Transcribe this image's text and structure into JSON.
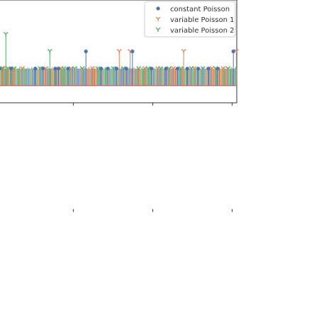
{
  "chart_data": {
    "type": "stem",
    "title": "",
    "xlabel": "",
    "ylabel": "",
    "legend_position": "top-right",
    "series": [
      {
        "name": "constant Poisson",
        "color": "#4c72b0",
        "marker": "circle",
        "points": [
          {
            "x": 0.5,
            "y": 1
          },
          {
            "x": 5.5,
            "y": 1
          },
          {
            "x": 16.2,
            "y": 1
          },
          {
            "x": 19.6,
            "y": 1
          },
          {
            "x": 25.0,
            "y": 1
          },
          {
            "x": 26.4,
            "y": 1
          },
          {
            "x": 30.6,
            "y": 1
          },
          {
            "x": 38.5,
            "y": 2
          },
          {
            "x": 45.2,
            "y": 1
          },
          {
            "x": 48.1,
            "y": 1
          },
          {
            "x": 52.0,
            "y": 1
          },
          {
            "x": 56.3,
            "y": 1
          },
          {
            "x": 59.0,
            "y": 2
          },
          {
            "x": 67.4,
            "y": 1
          },
          {
            "x": 73.8,
            "y": 1
          },
          {
            "x": 78.9,
            "y": 1
          },
          {
            "x": 83.2,
            "y": 1
          },
          {
            "x": 88.0,
            "y": 1
          },
          {
            "x": 92.5,
            "y": 1
          },
          {
            "x": 96.5,
            "y": 1
          },
          {
            "x": 103.5,
            "y": 2
          }
        ]
      },
      {
        "name": "variable Poisson 1",
        "color": "#dd8452",
        "marker": "tri_down",
        "points": [
          {
            "x": 2.0,
            "y": 1
          },
          {
            "x": 10.5,
            "y": 1
          },
          {
            "x": 20.8,
            "y": 1
          },
          {
            "x": 27.5,
            "y": 1
          },
          {
            "x": 32.0,
            "y": 1
          },
          {
            "x": 41.4,
            "y": 1
          },
          {
            "x": 53.2,
            "y": 2
          },
          {
            "x": 58.0,
            "y": 2
          },
          {
            "x": 64.5,
            "y": 1
          },
          {
            "x": 70.2,
            "y": 1
          },
          {
            "x": 77.0,
            "y": 1
          },
          {
            "x": 81.6,
            "y": 2
          },
          {
            "x": 86.3,
            "y": 1
          },
          {
            "x": 94.0,
            "y": 1
          },
          {
            "x": 99.0,
            "y": 1
          },
          {
            "x": 104.8,
            "y": 2
          }
        ]
      },
      {
        "name": "variable Poisson 2",
        "color": "#55a868",
        "marker": "tri_down",
        "points": [
          {
            "x": 1.5,
            "y": 1
          },
          {
            "x": 3.2,
            "y": 3
          },
          {
            "x": 4.1,
            "y": 1
          },
          {
            "x": 6.8,
            "y": 1
          },
          {
            "x": 18.3,
            "y": 1
          },
          {
            "x": 22.6,
            "y": 2
          },
          {
            "x": 28.8,
            "y": 1
          },
          {
            "x": 33.5,
            "y": 1
          },
          {
            "x": 36.9,
            "y": 1
          },
          {
            "x": 43.7,
            "y": 1
          },
          {
            "x": 50.6,
            "y": 1
          },
          {
            "x": 55.0,
            "y": 1
          },
          {
            "x": 61.8,
            "y": 1
          },
          {
            "x": 66.0,
            "y": 1
          },
          {
            "x": 71.5,
            "y": 1
          },
          {
            "x": 75.2,
            "y": 1
          },
          {
            "x": 80.4,
            "y": 1
          },
          {
            "x": 85.0,
            "y": 1
          },
          {
            "x": 90.1,
            "y": 1
          },
          {
            "x": 95.7,
            "y": 1
          },
          {
            "x": 101.2,
            "y": 1
          }
        ]
      }
    ],
    "xlim": [
      0,
      105
    ],
    "ylim": [
      -1,
      5
    ],
    "background_band": {
      "y_from": 0,
      "y_to": 1,
      "colors": [
        "#4c72b0",
        "#dd8452",
        "#55a868"
      ]
    },
    "upper_axes": {
      "has_frame": true,
      "x_ticks": [
        33,
        68,
        103
      ]
    },
    "lower_axes": {
      "has_frame": false,
      "x_ticks": [
        33,
        68,
        103
      ]
    }
  }
}
